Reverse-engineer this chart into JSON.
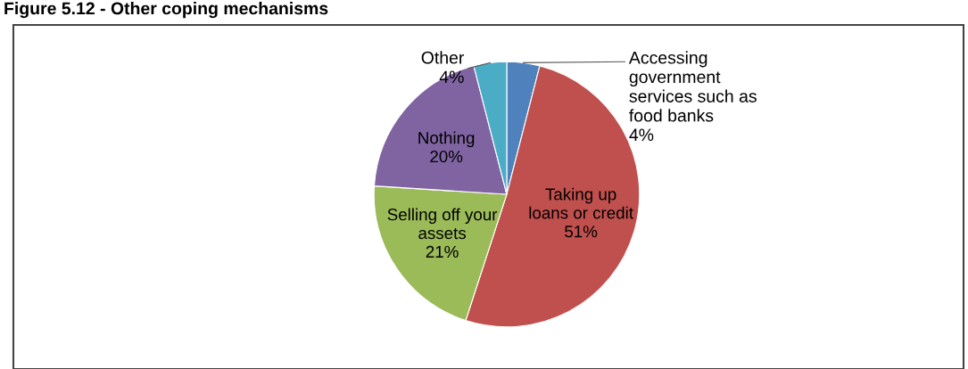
{
  "chart_data": {
    "type": "pie",
    "title": "Figure 5.12 - Other coping mechanisms",
    "categories": [
      "Accessing\ngovernment\nservices such as\nfood banks",
      "Taking up\nloans or credit",
      "Selling off your\nassets",
      "Nothing",
      "Other"
    ],
    "values": [
      4,
      51,
      21,
      20,
      4
    ],
    "value_labels": [
      "4%",
      "51%",
      "21%",
      "20%",
      "4%"
    ],
    "colors": [
      "#4f81bd",
      "#c0504d",
      "#9bbb59",
      "#8064a2",
      "#4bacc6"
    ],
    "legend": false
  }
}
